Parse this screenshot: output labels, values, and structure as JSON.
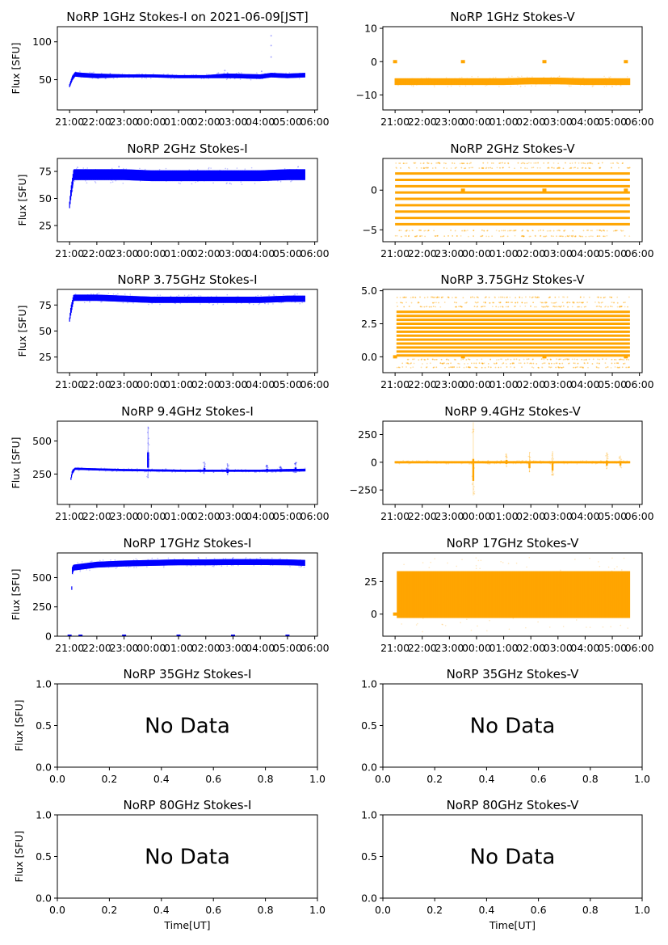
{
  "figure": {
    "background": "#ffffff"
  },
  "colors": {
    "stokes_i": "#0000ff",
    "stokes_v": "#ffa500",
    "axes": "#000000"
  },
  "time_ticks": [
    "21:00",
    "22:00",
    "23:00",
    "00:00",
    "01:00",
    "02:00",
    "03:00",
    "04:00",
    "05:00",
    "06:00"
  ],
  "chart_data": [
    {
      "id": "p1i",
      "type": "scatter",
      "title": "NoRP 1GHz Stokes-I on 2021-06-09[JST]",
      "ylabel": "Flux [SFU]",
      "xlabel": "",
      "color": "#0000ff",
      "xlim": [
        20.55,
        30.1
      ],
      "ylim": [
        10,
        120
      ],
      "yticks": [
        50,
        100
      ],
      "ytick_labels": [
        "50",
        "100"
      ],
      "x_tick_values": [
        21,
        22,
        23,
        24,
        25,
        26,
        27,
        28,
        29,
        30
      ],
      "series": [
        {
          "name": "Stokes-I",
          "kind": "band",
          "x": [
            21.0,
            21.1,
            21.2,
            21.5,
            22.0,
            23.0,
            24.0,
            25.0,
            26.0,
            26.7,
            27.0,
            28.0,
            28.4,
            29.0,
            29.65
          ],
          "y_center": [
            42,
            52,
            57,
            56,
            55,
            55,
            55,
            54,
            54,
            55,
            55,
            54,
            56,
            55,
            56
          ],
          "y_spread": [
            2,
            3,
            3,
            3,
            3,
            2,
            2,
            2,
            2,
            3,
            3,
            3,
            3,
            3,
            3
          ]
        },
        {
          "name": "outliers",
          "kind": "points",
          "x": [
            28.4,
            28.4,
            28.4,
            26.7,
            28.05
          ],
          "y": [
            108,
            95,
            80,
            62,
            61
          ]
        }
      ],
      "x_range_data": [
        "21:00",
        "05:40"
      ]
    },
    {
      "id": "p1v",
      "type": "scatter",
      "title": "NoRP 1GHz Stokes-V",
      "ylabel": "",
      "xlabel": "",
      "color": "#ffa500",
      "xlim": [
        20.55,
        30.1
      ],
      "ylim": [
        -14.5,
        10.5
      ],
      "yticks": [
        -10,
        0,
        10
      ],
      "ytick_labels": [
        "−10",
        "0",
        "10"
      ],
      "x_tick_values": [
        21,
        22,
        23,
        24,
        25,
        26,
        27,
        28,
        29,
        30
      ],
      "series": [
        {
          "name": "Stokes-V",
          "kind": "band",
          "x": [
            21.0,
            22.0,
            23.0,
            24.0,
            25.0,
            26.0,
            27.0,
            28.0,
            29.0,
            29.65
          ],
          "y_center": [
            -6,
            -6,
            -6,
            -6,
            -6,
            -5.8,
            -5.8,
            -6,
            -6,
            -6
          ],
          "y_spread": [
            1,
            1,
            1,
            1,
            1,
            1,
            1,
            1,
            1,
            1
          ]
        },
        {
          "name": "zero-markers",
          "kind": "points",
          "x": [
            21.0,
            23.5,
            26.5,
            29.5
          ],
          "y": [
            0,
            0,
            0,
            0
          ]
        }
      ],
      "x_range_data": [
        "21:00",
        "05:40"
      ]
    },
    {
      "id": "p2i",
      "type": "scatter",
      "title": "NoRP 2GHz Stokes-I",
      "ylabel": "Flux [SFU]",
      "xlabel": "",
      "color": "#0000ff",
      "xlim": [
        20.55,
        30.1
      ],
      "ylim": [
        10,
        87
      ],
      "yticks": [
        25,
        50,
        75
      ],
      "ytick_labels": [
        "25",
        "50",
        "75"
      ],
      "x_tick_values": [
        21,
        22,
        23,
        24,
        25,
        26,
        27,
        28,
        29,
        30
      ],
      "series": [
        {
          "name": "Stokes-I",
          "kind": "band",
          "x": [
            21.0,
            21.05,
            21.15,
            22.0,
            23.0,
            24.0,
            25.0,
            26.0,
            27.0,
            28.0,
            29.0,
            29.65
          ],
          "y_center": [
            44,
            55,
            72,
            72,
            72,
            71,
            71,
            71,
            71,
            71,
            72,
            72
          ],
          "y_spread": [
            3,
            5,
            5,
            5,
            5,
            5,
            5,
            5,
            5,
            5,
            5,
            5
          ]
        }
      ],
      "x_range_data": [
        "21:00",
        "05:40"
      ]
    },
    {
      "id": "p2v",
      "type": "scatter",
      "title": "NoRP 2GHz Stokes-V",
      "ylabel": "",
      "xlabel": "",
      "color": "#ffa500",
      "xlim": [
        20.55,
        30.1
      ],
      "ylim": [
        -6.5,
        4.0
      ],
      "yticks": [
        -5,
        0
      ],
      "ytick_labels": [
        "−5",
        "0"
      ],
      "x_tick_values": [
        21,
        22,
        23,
        24,
        25,
        26,
        27,
        28,
        29,
        30
      ],
      "series": [
        {
          "name": "Stokes-V",
          "kind": "levels",
          "x": [
            21.0,
            29.65
          ],
          "levels": [
            2.1,
            1.3,
            0.5,
            -0.3,
            -1.1,
            -1.9,
            -2.7,
            -3.5,
            -4.3
          ],
          "sparse_levels": [
            3.4,
            2.8,
            -5.1,
            -5.8
          ]
        },
        {
          "name": "zero-markers",
          "kind": "points",
          "x": [
            23.5,
            26.5,
            29.5
          ],
          "y": [
            0,
            0,
            0
          ]
        }
      ],
      "x_range_data": [
        "21:00",
        "05:40"
      ]
    },
    {
      "id": "p3i",
      "type": "scatter",
      "title": "NoRP 3.75GHz Stokes-I",
      "ylabel": "Flux [SFU]",
      "xlabel": "",
      "color": "#0000ff",
      "xlim": [
        20.55,
        30.1
      ],
      "ylim": [
        10,
        90
      ],
      "yticks": [
        25,
        50,
        75
      ],
      "ytick_labels": [
        "25",
        "50",
        "75"
      ],
      "x_tick_values": [
        21,
        22,
        23,
        24,
        25,
        26,
        27,
        28,
        29,
        30
      ],
      "series": [
        {
          "name": "Stokes-I",
          "kind": "band",
          "x": [
            21.0,
            21.05,
            21.15,
            22.0,
            23.0,
            24.0,
            25.0,
            26.0,
            27.0,
            28.0,
            29.0,
            29.65
          ],
          "y_center": [
            61,
            70,
            82,
            82,
            81,
            80,
            80,
            80,
            80,
            80,
            81,
            81
          ],
          "y_spread": [
            2,
            4,
            3,
            3,
            3,
            3,
            3,
            3,
            3,
            3,
            3,
            3
          ]
        }
      ],
      "x_range_data": [
        "21:00",
        "05:40"
      ]
    },
    {
      "id": "p3v",
      "type": "scatter",
      "title": "NoRP 3.75GHz Stokes-V",
      "ylabel": "",
      "xlabel": "",
      "color": "#ffa500",
      "xlim": [
        20.55,
        30.1
      ],
      "ylim": [
        -1.2,
        5.1
      ],
      "yticks": [
        0.0,
        2.5,
        5.0
      ],
      "ytick_labels": [
        "0.0",
        "2.5",
        "5.0"
      ],
      "x_tick_values": [
        21,
        22,
        23,
        24,
        25,
        26,
        27,
        28,
        29,
        30
      ],
      "series": [
        {
          "name": "Stokes-V",
          "kind": "levels",
          "x": [
            21.05,
            29.65
          ],
          "levels": [
            0.1,
            0.4,
            0.7,
            1.0,
            1.3,
            1.6,
            1.9,
            2.2,
            2.5,
            2.8,
            3.1,
            3.4
          ],
          "sparse_levels": [
            3.8,
            4.1,
            4.5,
            -0.2,
            -0.5,
            -0.8
          ]
        },
        {
          "name": "zero-markers",
          "kind": "points",
          "x": [
            21.0,
            23.5,
            26.5,
            29.5
          ],
          "y": [
            0,
            0,
            0,
            0
          ]
        }
      ],
      "x_range_data": [
        "21:00",
        "05:40"
      ]
    },
    {
      "id": "p4i",
      "type": "scatter",
      "title": "NoRP 9.4GHz Stokes-I",
      "ylabel": "Flux [SFU]",
      "xlabel": "",
      "color": "#0000ff",
      "xlim": [
        20.55,
        30.1
      ],
      "ylim": [
        20,
        650
      ],
      "yticks": [
        250,
        500
      ],
      "ytick_labels": [
        "250",
        "500"
      ],
      "x_tick_values": [
        21,
        22,
        23,
        24,
        25,
        26,
        27,
        28,
        29,
        30
      ],
      "series": [
        {
          "name": "Stokes-I",
          "kind": "band",
          "x": [
            21.05,
            21.1,
            21.2,
            22.0,
            23.0,
            24.0,
            25.0,
            26.0,
            27.0,
            28.0,
            29.0,
            29.65
          ],
          "y_center": [
            215,
            265,
            290,
            285,
            280,
            278,
            275,
            275,
            275,
            275,
            278,
            280
          ],
          "y_spread": [
            10,
            15,
            8,
            8,
            8,
            8,
            8,
            8,
            8,
            8,
            10,
            10
          ]
        },
        {
          "name": "bursts",
          "kind": "spikes",
          "x": [
            23.88,
            25.95,
            26.8,
            28.25,
            28.75,
            29.3
          ],
          "y_top": [
            610,
            340,
            330,
            320,
            310,
            340
          ],
          "y_bottom": [
            220,
            250,
            240,
            260,
            265,
            260
          ]
        }
      ],
      "x_range_data": [
        "21:00",
        "05:40"
      ]
    },
    {
      "id": "p4v",
      "type": "scatter",
      "title": "NoRP 9.4GHz Stokes-V",
      "ylabel": "",
      "xlabel": "",
      "color": "#ffa500",
      "xlim": [
        20.55,
        30.1
      ],
      "ylim": [
        -380,
        370
      ],
      "yticks": [
        -250,
        0,
        250
      ],
      "ytick_labels": [
        "−250",
        "0",
        "250"
      ],
      "x_tick_values": [
        21,
        22,
        23,
        24,
        25,
        26,
        27,
        28,
        29,
        30
      ],
      "series": [
        {
          "name": "Stokes-V",
          "kind": "band",
          "x": [
            21.0,
            22.0,
            23.0,
            24.0,
            25.0,
            26.0,
            27.0,
            28.0,
            29.0,
            29.65
          ],
          "y_center": [
            0,
            0,
            0,
            0,
            0,
            0,
            0,
            0,
            0,
            0
          ],
          "y_spread": [
            10,
            10,
            10,
            10,
            10,
            10,
            10,
            10,
            10,
            10
          ]
        },
        {
          "name": "bursts",
          "kind": "spikes",
          "x": [
            23.88,
            25.1,
            25.95,
            26.8,
            28.8,
            29.3
          ],
          "y_top": [
            360,
            80,
            90,
            100,
            90,
            60
          ],
          "y_bottom": [
            -300,
            -40,
            -90,
            -120,
            -60,
            -50
          ]
        }
      ],
      "x_range_data": [
        "21:00",
        "05:40"
      ]
    },
    {
      "id": "p5i",
      "type": "scatter",
      "title": "NoRP 17GHz Stokes-I",
      "ylabel": "Flux [SFU]",
      "xlabel": "",
      "color": "#0000ff",
      "xlim": [
        20.55,
        30.1
      ],
      "ylim": [
        0,
        710
      ],
      "yticks": [
        0,
        250,
        500
      ],
      "ytick_labels": [
        "0",
        "250",
        "500"
      ],
      "x_tick_values": [
        21,
        22,
        23,
        24,
        25,
        26,
        27,
        28,
        29,
        30
      ],
      "series": [
        {
          "name": "Stokes-I",
          "kind": "band",
          "x": [
            21.08,
            21.1,
            21.15,
            22.0,
            23.0,
            24.0,
            25.0,
            26.0,
            27.0,
            28.0,
            29.0,
            29.65
          ],
          "y_center": [
            410,
            560,
            585,
            610,
            620,
            625,
            630,
            630,
            632,
            632,
            630,
            625
          ],
          "y_spread": [
            15,
            30,
            25,
            25,
            25,
            25,
            25,
            25,
            25,
            25,
            25,
            25
          ]
        },
        {
          "name": "zero-markers",
          "kind": "points",
          "x": [
            21.0,
            21.4,
            23.0,
            25.0,
            27.0,
            29.0
          ],
          "y": [
            0,
            0,
            0,
            0,
            0,
            0
          ]
        }
      ],
      "x_range_data": [
        "21:00",
        "05:40"
      ]
    },
    {
      "id": "p5v",
      "type": "scatter",
      "title": "NoRP 17GHz Stokes-V",
      "ylabel": "",
      "xlabel": "",
      "color": "#ffa500",
      "xlim": [
        20.55,
        30.1
      ],
      "ylim": [
        -17,
        47
      ],
      "yticks": [
        0,
        25
      ],
      "ytick_labels": [
        "0",
        "25"
      ],
      "x_tick_values": [
        21,
        22,
        23,
        24,
        25,
        26,
        27,
        28,
        29,
        30
      ],
      "series": [
        {
          "name": "Stokes-V",
          "kind": "band",
          "x": [
            21.08,
            22.0,
            23.0,
            24.0,
            25.0,
            26.0,
            27.0,
            28.0,
            29.0,
            29.65
          ],
          "y_center": [
            15,
            15,
            15,
            15,
            15,
            15,
            15,
            15,
            15,
            15
          ],
          "y_spread": [
            18,
            18,
            18,
            18,
            18,
            18,
            18,
            18,
            18,
            18
          ]
        },
        {
          "name": "zero-markers",
          "kind": "points",
          "x": [
            21.0
          ],
          "y": [
            0
          ]
        }
      ],
      "x_range_data": [
        "21:00",
        "05:40"
      ]
    },
    {
      "id": "p6i",
      "type": "empty",
      "title": "NoRP 35GHz Stokes-I",
      "ylabel": "Flux [SFU]",
      "xlabel": "",
      "annotation": "No Data",
      "xlim": [
        0,
        1
      ],
      "ylim": [
        0,
        1
      ],
      "x_tick_values": [
        0.0,
        0.2,
        0.4,
        0.6,
        0.8,
        1.0
      ],
      "x_tick_labels": [
        "0.0",
        "0.2",
        "0.4",
        "0.6",
        "0.8",
        "1.0"
      ],
      "yticks": [
        0.0,
        0.5,
        1.0
      ],
      "ytick_labels": [
        "0.0",
        "0.5",
        "1.0"
      ]
    },
    {
      "id": "p6v",
      "type": "empty",
      "title": "NoRP 35GHz Stokes-V",
      "ylabel": "",
      "xlabel": "",
      "annotation": "No Data",
      "xlim": [
        0,
        1
      ],
      "ylim": [
        0,
        1
      ],
      "x_tick_values": [
        0.0,
        0.2,
        0.4,
        0.6,
        0.8,
        1.0
      ],
      "x_tick_labels": [
        "0.0",
        "0.2",
        "0.4",
        "0.6",
        "0.8",
        "1.0"
      ],
      "yticks": [
        0.0,
        0.5,
        1.0
      ],
      "ytick_labels": [
        "0.0",
        "0.5",
        "1.0"
      ]
    },
    {
      "id": "p7i",
      "type": "empty",
      "title": "NoRP 80GHz Stokes-I",
      "ylabel": "Flux [SFU]",
      "xlabel": "Time[UT]",
      "annotation": "No Data",
      "xlim": [
        0,
        1
      ],
      "ylim": [
        0,
        1
      ],
      "x_tick_values": [
        0.0,
        0.2,
        0.4,
        0.6,
        0.8,
        1.0
      ],
      "x_tick_labels": [
        "0.0",
        "0.2",
        "0.4",
        "0.6",
        "0.8",
        "1.0"
      ],
      "yticks": [
        0.0,
        0.5,
        1.0
      ],
      "ytick_labels": [
        "0.0",
        "0.5",
        "1.0"
      ]
    },
    {
      "id": "p7v",
      "type": "empty",
      "title": "NoRP 80GHz Stokes-V",
      "ylabel": "",
      "xlabel": "Time[UT]",
      "annotation": "No Data",
      "xlim": [
        0,
        1
      ],
      "ylim": [
        0,
        1
      ],
      "x_tick_values": [
        0.0,
        0.2,
        0.4,
        0.6,
        0.8,
        1.0
      ],
      "x_tick_labels": [
        "0.0",
        "0.2",
        "0.4",
        "0.6",
        "0.8",
        "1.0"
      ],
      "yticks": [
        0.0,
        0.5,
        1.0
      ],
      "ytick_labels": [
        "0.0",
        "0.5",
        "1.0"
      ]
    }
  ]
}
